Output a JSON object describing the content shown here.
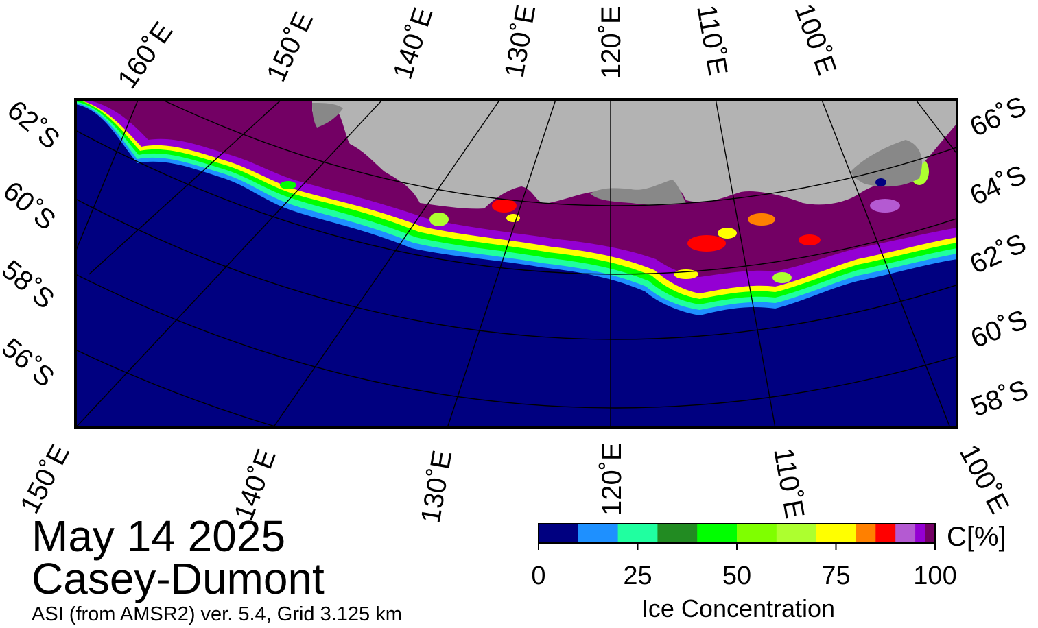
{
  "header": {
    "date": "May 14 2025",
    "region": "Casey-Dumont",
    "source": "ASI (from AMSR2) ver. 5.4,  Grid 3.125 km"
  },
  "map": {
    "projection": "polar stereographic (south)",
    "ocean_color": "#000080",
    "land_color": "#b3b3b3",
    "ice_shelf_color": "#888888",
    "top_longitude_labels": [
      "160˚E",
      "150˚E",
      "140˚E",
      "130˚E",
      "120˚E",
      "110˚E",
      "100˚E"
    ],
    "bottom_longitude_labels": [
      "150˚E",
      "140˚E",
      "130˚E",
      "120˚E",
      "110˚E",
      "100˚E"
    ],
    "left_latitude_labels": [
      "62˚S",
      "60˚S",
      "58˚S",
      "56˚S"
    ],
    "right_latitude_labels": [
      "66˚S",
      "64˚S",
      "62˚S",
      "60˚S",
      "58˚S"
    ]
  },
  "legend": {
    "title": "Ice Concentration",
    "unit": "C[%]",
    "tick_labels": [
      "0",
      "25",
      "50",
      "75",
      "100"
    ],
    "range": [
      0,
      100
    ],
    "colors": [
      "#000080",
      "#1e90ff",
      "#20ffa0",
      "#228b22",
      "#00ff00",
      "#7fff00",
      "#adff2f",
      "#ffff00",
      "#ff8000",
      "#ff0000",
      "#b45ad2",
      "#9400d3",
      "#730064"
    ]
  }
}
